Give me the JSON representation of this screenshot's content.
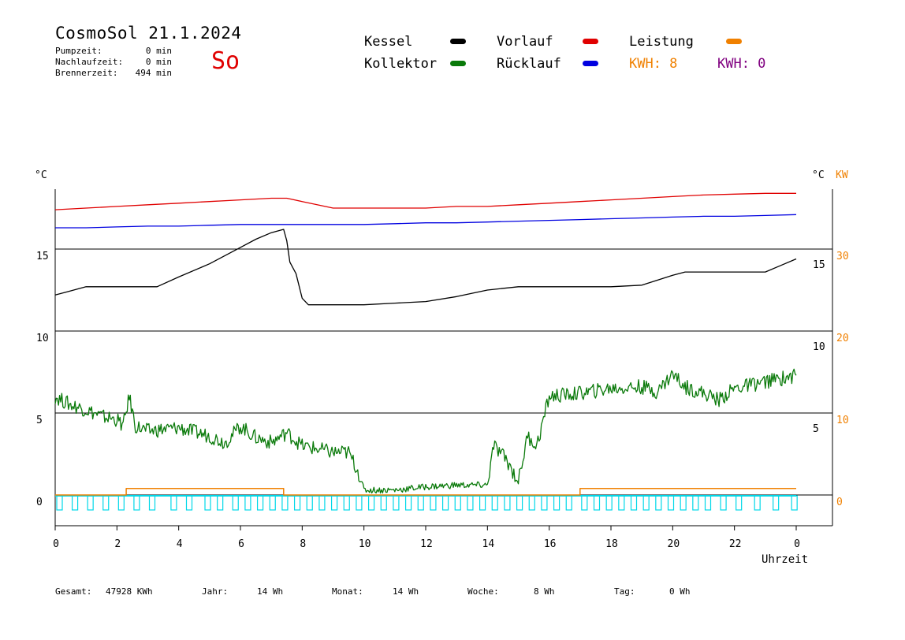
{
  "header": {
    "title": "CosmoSol 21.1.2024",
    "day": "So",
    "pumpzeit_label": "Pumpzeit:",
    "pumpzeit_value": "0 min",
    "nachlauf_label": "Nachlaufzeit:",
    "nachlauf_value": "0 min",
    "brenner_label": "Brennerzeit:",
    "brenner_value": "494 min"
  },
  "legend": {
    "kessel": "Kessel",
    "kollektor": "Kollektor",
    "vorlauf": "Vorlauf",
    "ruecklauf": "Rücklauf",
    "leistung": "Leistung",
    "kwh1": "KWH: 8",
    "kwh2": "KWH: 0"
  },
  "colors": {
    "kessel": "#000000",
    "kollektor": "#0a7a0a",
    "vorlauf": "#e00000",
    "ruecklauf": "#0000e0",
    "leistung": "#f08000",
    "kwh2": "#800080",
    "pump": "#00d8e8"
  },
  "axes": {
    "y_left_unit": "°C",
    "y_right_unit": "°C",
    "y_right2_unit": "KW",
    "x_label": "Uhrzeit"
  },
  "footer": {
    "gesamt_label": "Gesamt:",
    "gesamt_value": "47928 KWh",
    "jahr_label": "Jahr:",
    "jahr_value": "14 Wh",
    "monat_label": "Monat:",
    "monat_value": "14 Wh",
    "woche_label": "Woche:",
    "woche_value": "8 Wh",
    "tag_label": "Tag:",
    "tag_value": "0 Wh"
  },
  "chart_data": {
    "type": "line",
    "xlabel": "Uhrzeit",
    "x_ticks": [
      "0",
      "2",
      "4",
      "6",
      "8",
      "10",
      "12",
      "14",
      "16",
      "18",
      "20",
      "22",
      "0"
    ],
    "x_range_hours": [
      0,
      24
    ],
    "ylim": [
      -2,
      19
    ],
    "y_ticks_left": [
      "15",
      "10",
      "5",
      "0"
    ],
    "y_ticks_left_values": [
      15,
      10,
      5,
      0
    ],
    "y_ticks_right": [
      "15",
      "10",
      "5"
    ],
    "y_ticks_right_values": [
      15,
      10,
      5
    ],
    "y_ticks_kw": [
      "30",
      "20",
      "10",
      "0"
    ],
    "y_ticks_kw_values": [
      30,
      20,
      10,
      0
    ],
    "series": [
      {
        "name": "Vorlauf",
        "color": "#e00000",
        "x": [
          0,
          1,
          2,
          3,
          4,
          5,
          6,
          7,
          7.5,
          8,
          9,
          10,
          11,
          12,
          13,
          14,
          15,
          16,
          17,
          18,
          19,
          20,
          21,
          22,
          23,
          24
        ],
        "y": [
          17.4,
          17.5,
          17.6,
          17.7,
          17.8,
          17.9,
          18.0,
          18.1,
          18.1,
          17.9,
          17.5,
          17.5,
          17.5,
          17.5,
          17.6,
          17.6,
          17.7,
          17.8,
          17.9,
          18.0,
          18.1,
          18.2,
          18.3,
          18.35,
          18.4,
          18.4
        ]
      },
      {
        "name": "Rücklauf",
        "color": "#0000e0",
        "x": [
          0,
          1,
          2,
          3,
          4,
          5,
          6,
          7,
          8,
          9,
          10,
          11,
          12,
          13,
          14,
          15,
          16,
          17,
          18,
          19,
          20,
          21,
          22,
          23,
          24
        ],
        "y": [
          16.3,
          16.3,
          16.35,
          16.4,
          16.4,
          16.45,
          16.5,
          16.5,
          16.5,
          16.5,
          16.5,
          16.55,
          16.6,
          16.6,
          16.65,
          16.7,
          16.75,
          16.8,
          16.85,
          16.9,
          16.95,
          17.0,
          17.0,
          17.05,
          17.1
        ]
      },
      {
        "name": "Kessel",
        "color": "#000000",
        "x": [
          0,
          0.4,
          0.8,
          1.0,
          2,
          3,
          3.3,
          4,
          5,
          6,
          6.5,
          7,
          7.4,
          7.5,
          7.6,
          7.8,
          8.0,
          8.2,
          8.5,
          9,
          10,
          11,
          12,
          13,
          14,
          15,
          15.5,
          16,
          17,
          18,
          19,
          19.5,
          20,
          20.4,
          21,
          22,
          23,
          23.5,
          24
        ],
        "y": [
          12.2,
          12.4,
          12.6,
          12.7,
          12.7,
          12.7,
          12.7,
          13.3,
          14.1,
          15.1,
          15.6,
          16.0,
          16.2,
          15.5,
          14.2,
          13.5,
          12.0,
          11.6,
          11.6,
          11.6,
          11.6,
          11.7,
          11.8,
          12.1,
          12.5,
          12.7,
          12.7,
          12.7,
          12.7,
          12.7,
          12.8,
          13.1,
          13.4,
          13.6,
          13.6,
          13.6,
          13.6,
          14.0,
          14.4
        ]
      },
      {
        "name": "Kollektor",
        "color": "#0a7a0a",
        "x": [
          0,
          0.5,
          1,
          1.5,
          2,
          2.2,
          2.4,
          2.6,
          3,
          4,
          5,
          5.5,
          6,
          6.5,
          7,
          7.5,
          8,
          8.5,
          9,
          9.5,
          9.8,
          10,
          11,
          12,
          13,
          14,
          14.2,
          14.6,
          15,
          15.3,
          15.6,
          16,
          17,
          18,
          19,
          19.5,
          20,
          20.4,
          21,
          21.5,
          22,
          23,
          24
        ],
        "y": [
          6.0,
          5.5,
          5.2,
          4.8,
          4.6,
          4.2,
          6.0,
          4.2,
          3.9,
          4.1,
          3.6,
          3.2,
          4.2,
          3.5,
          3.2,
          3.8,
          3.0,
          2.8,
          2.6,
          2.6,
          1.5,
          0.3,
          0.3,
          0.5,
          0.6,
          0.6,
          3.0,
          2.2,
          0.8,
          3.6,
          3.0,
          6.0,
          6.2,
          6.5,
          6.6,
          6.3,
          7.4,
          6.6,
          6.2,
          5.8,
          6.5,
          6.9,
          7.3
        ]
      },
      {
        "name": "Leistung",
        "color": "#f08000",
        "x": [
          0,
          2.3,
          2.3,
          7.4,
          7.4,
          17,
          17,
          24
        ],
        "y": [
          0,
          0,
          0.4,
          0.4,
          0,
          0,
          0.4,
          0.4
        ]
      }
    ],
    "pump_segments_hours": [
      0,
      0.5,
      1,
      1.5,
      2,
      2.5,
      3,
      3.7,
      4.2,
      4.8,
      5.2,
      5.7,
      6.1,
      6.5,
      6.9,
      7.3,
      7.7,
      8.1,
      8.5,
      8.9,
      9.3,
      9.7,
      10.1,
      10.5,
      10.9,
      11.3,
      11.7,
      12.1,
      12.5,
      12.9,
      13.3,
      13.7,
      14.1,
      14.5,
      14.9,
      15.3,
      15.7,
      16.1,
      16.5,
      17,
      17.4,
      17.8,
      18.2,
      18.6,
      19,
      19.4,
      19.8,
      20.2,
      20.6,
      21,
      21.5,
      22,
      22.6,
      23.2,
      23.8
    ]
  }
}
